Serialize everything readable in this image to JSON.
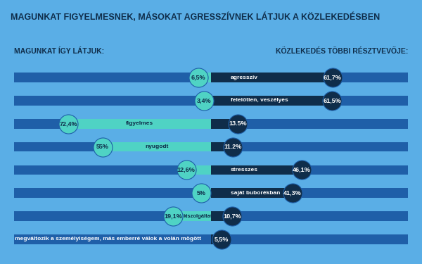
{
  "chart_data": {
    "type": "diverging_bar",
    "orientation": "horizontal",
    "title": "MAGUNKAT FIGYELMESNEK, MÁSOKAT AGRESSZÍVNEK LÁTJUK A KÖZLEKEDÉSBEN",
    "categories": [
      "agresszív",
      "felelőtlen, veszélyes",
      "figyelmes",
      "nyugodt",
      "stresszes",
      "saját buborékban",
      "kiszolgáltatott",
      "megváltozik a személyiségem, más emberré válok a volán mögött"
    ],
    "series": [
      {
        "name": "MAGUNKAT ÍGY LÁTJUK:",
        "color": "#4fd3c4",
        "values": [
          6.5,
          3.4,
          72.4,
          55,
          12.6,
          5,
          19.1,
          null
        ],
        "value_labels": [
          "6,5%",
          "3,4%",
          "72,4%",
          "55%",
          "12,6%",
          "5%",
          "19,1%",
          null
        ]
      },
      {
        "name": "KÖZLEKEDÉS TÖBBI RÉSZTVEVŐJE:",
        "color": "#0f2d4a",
        "values": [
          61.7,
          61.5,
          13.5,
          11.2,
          46.1,
          41.3,
          10.7,
          5.5
        ],
        "value_labels": [
          "61,7%",
          "61,5%",
          "13.5%",
          "11.2%",
          "46,1%",
          "41,3%",
          "10,7%",
          "5,5%"
        ]
      }
    ],
    "xlim": [
      -100,
      100
    ],
    "data_labels": true,
    "tick_labels": false,
    "grid": false
  }
}
